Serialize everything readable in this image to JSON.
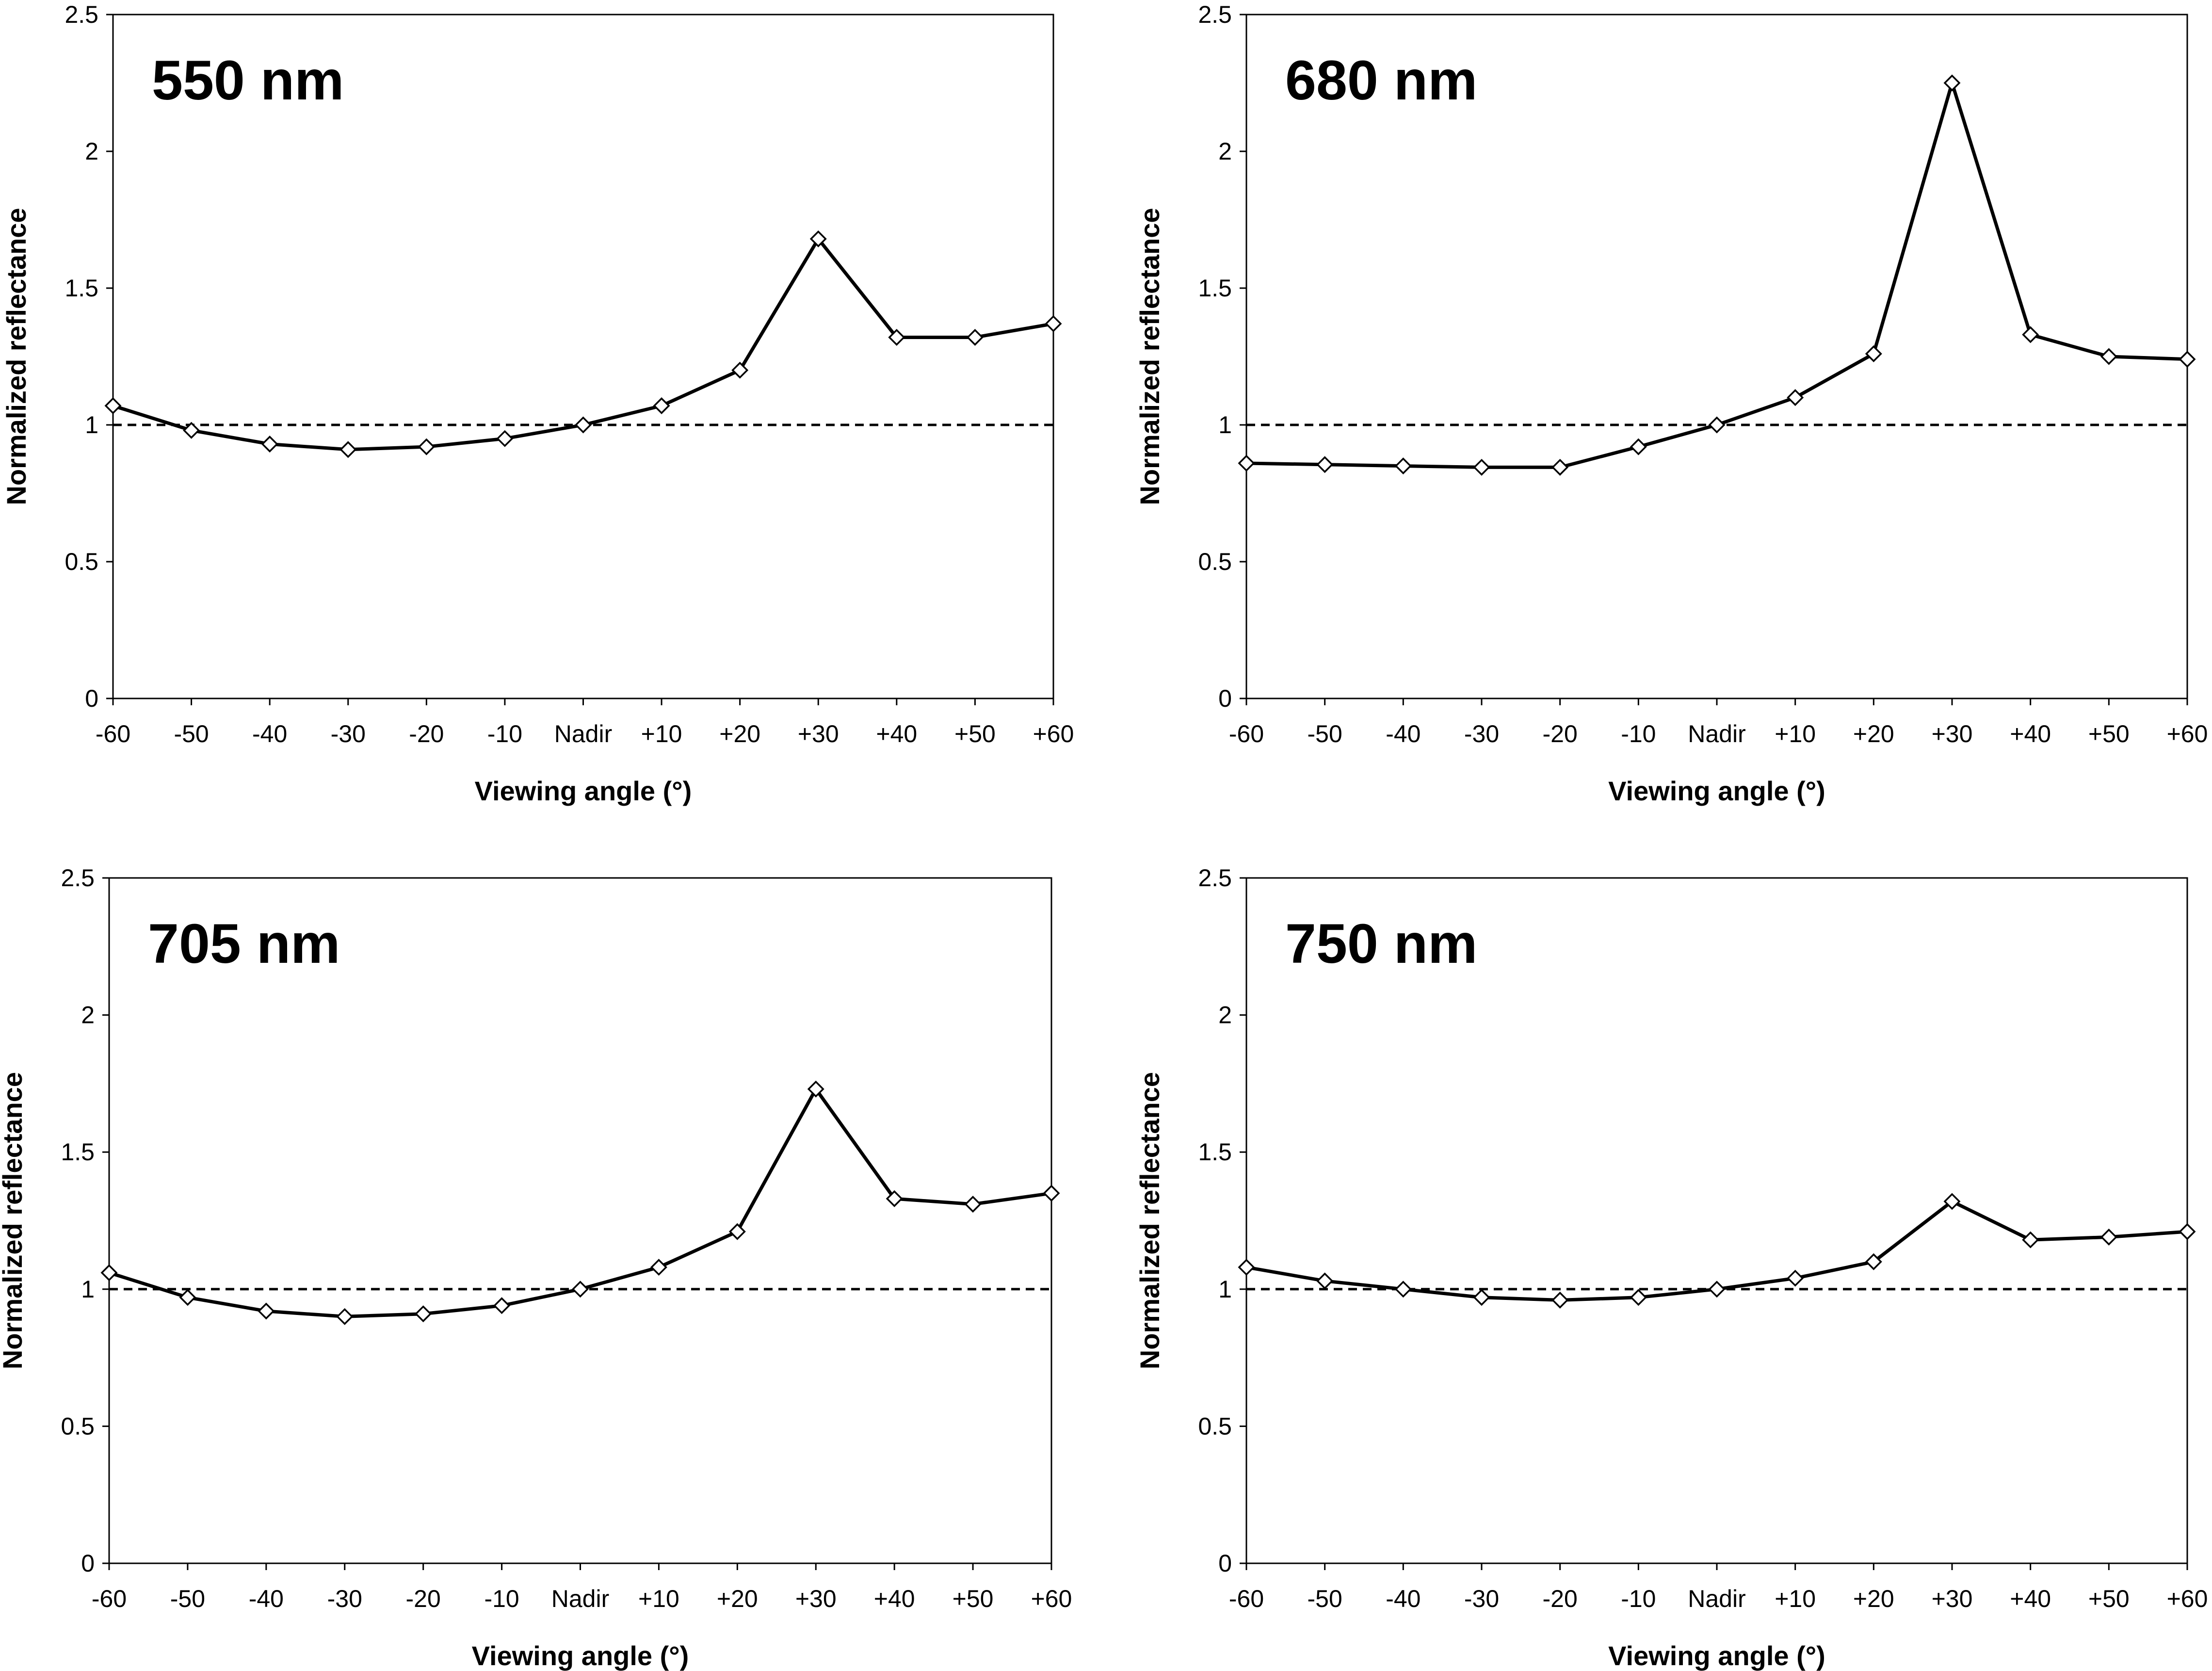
{
  "chart_data": [
    {
      "type": "line",
      "title": "550 nm",
      "xlabel": "Viewing angle (°)",
      "ylabel": "Normalized reflectance",
      "categories": [
        "-60",
        "-50",
        "-40",
        "-30",
        "-20",
        "-10",
        "Nadir",
        "+10",
        "+20",
        "+30",
        "+40",
        "+50",
        "+60"
      ],
      "values": [
        1.07,
        0.98,
        0.93,
        0.91,
        0.92,
        0.95,
        1.0,
        1.07,
        1.2,
        1.68,
        1.32,
        1.32,
        1.37
      ],
      "reference_line": 1,
      "ylim": [
        0,
        2.5
      ],
      "yticks": [
        "0",
        "0.5",
        "1",
        "1.5",
        "2",
        "2.5"
      ]
    },
    {
      "type": "line",
      "title": "680 nm",
      "xlabel": "Viewing angle (°)",
      "ylabel": "Normalized reflectance",
      "categories": [
        "-60",
        "-50",
        "-40",
        "-30",
        "-20",
        "-10",
        "Nadir",
        "+10",
        "+20",
        "+30",
        "+40",
        "+50",
        "+60"
      ],
      "values": [
        0.86,
        0.855,
        0.85,
        0.845,
        0.845,
        0.92,
        1.0,
        1.1,
        1.26,
        2.25,
        1.33,
        1.25,
        1.24
      ],
      "reference_line": 1,
      "ylim": [
        0,
        2.5
      ],
      "yticks": [
        "0",
        "0.5",
        "1",
        "1.5",
        "2",
        "2.5"
      ]
    },
    {
      "type": "line",
      "title": "705 nm",
      "xlabel": "Viewing angle (°)",
      "ylabel": "Normalized reflectance",
      "categories": [
        "-60",
        "-50",
        "-40",
        "-30",
        "-20",
        "-10",
        "Nadir",
        "+10",
        "+20",
        "+30",
        "+40",
        "+50",
        "+60"
      ],
      "values": [
        1.06,
        0.97,
        0.92,
        0.9,
        0.91,
        0.94,
        1.0,
        1.08,
        1.21,
        1.73,
        1.33,
        1.31,
        1.35
      ],
      "reference_line": 1,
      "ylim": [
        0,
        2.5
      ],
      "yticks": [
        "0",
        "0.5",
        "1",
        "1.5",
        "2",
        "2.5"
      ]
    },
    {
      "type": "line",
      "title": "750 nm",
      "xlabel": "Viewing angle (°)",
      "ylabel": "Normalized reflectance",
      "categories": [
        "-60",
        "-50",
        "-40",
        "-30",
        "-20",
        "-10",
        "Nadir",
        "+10",
        "+20",
        "+30",
        "+40",
        "+50",
        "+60"
      ],
      "values": [
        1.08,
        1.03,
        1.0,
        0.97,
        0.96,
        0.97,
        1.0,
        1.04,
        1.1,
        1.32,
        1.18,
        1.19,
        1.21
      ],
      "reference_line": 1,
      "ylim": [
        0,
        2.5
      ],
      "yticks": [
        "0",
        "0.5",
        "1",
        "1.5",
        "2",
        "2.5"
      ]
    }
  ]
}
